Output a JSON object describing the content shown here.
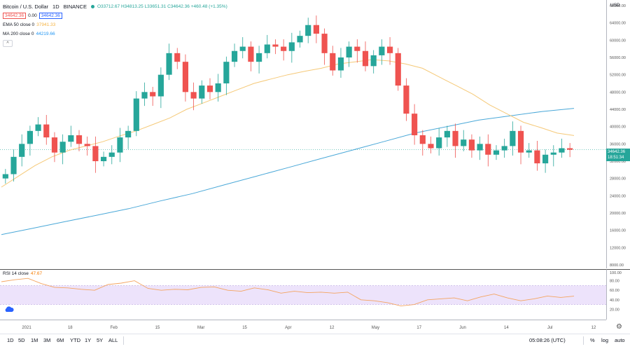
{
  "legend": {
    "symbol": "Bitcoin / U.S. Dollar",
    "interval": "1D",
    "exchange": "BINANCE",
    "ohlc": "O33712.67 H34813.25 L33651.31 C34642.36 +460.48 (+1.35%)",
    "bid": "34642.36",
    "spread": "0.00",
    "ask": "34642.36",
    "ema_label": "EMA 50 close 0",
    "ema_value": "37941.33",
    "ma_label": "MA 200 close 0",
    "ma_value": "44219.66",
    "collapse_glyph": "^"
  },
  "rsi": {
    "label": "RSI 14 close",
    "value": "47.67"
  },
  "price_axis": {
    "currency": "USD",
    "labels": [
      "68000.00",
      "64000.00",
      "60000.00",
      "56000.00",
      "52000.00",
      "48000.00",
      "44000.00",
      "40000.00",
      "36000.00",
      "32000.00",
      "28000.00",
      "24000.00",
      "20000.00",
      "16000.00",
      "12000.00",
      "8000.00"
    ],
    "current_price": "34642.36",
    "countdown": "18:51:34"
  },
  "rsi_axis": {
    "labels": [
      "100.00",
      "80.00",
      "60.00",
      "40.00",
      "20.00"
    ]
  },
  "time_axis": {
    "labels": [
      "2021",
      "18",
      "Feb",
      "15",
      "Mar",
      "15",
      "Apr",
      "12",
      "May",
      "17",
      "Jun",
      "14",
      "Jul",
      "12"
    ]
  },
  "bottom_bar": {
    "ranges": [
      "1D",
      "5D",
      "1M",
      "3M",
      "6M",
      "YTD",
      "1Y",
      "5Y",
      "ALL"
    ],
    "clock": "05:08:26 (UTC)",
    "percent": "%",
    "log": "log",
    "auto": "auto"
  },
  "colors": {
    "up": "#26a69a",
    "down": "#ef5350",
    "ema": "#f5c978",
    "ma": "#4aa8d8",
    "rsi": "#f4a460",
    "rsi_band": "#ede3fb"
  },
  "icons": {
    "settings": "gear-icon",
    "cloud": "cloud-icon"
  },
  "chart_data": {
    "type": "candlestick",
    "symbol": "Bitcoin / U.S. Dollar",
    "ylim": [
      8000,
      68000
    ],
    "ohlc_last": {
      "open": 33712.67,
      "high": 34813.25,
      "low": 33651.31,
      "close": 34642.36
    },
    "close_series": [
      29000,
      33000,
      36000,
      39000,
      40500,
      37500,
      34000,
      36500,
      38000,
      36000,
      35500,
      32000,
      33000,
      34000,
      37500,
      39000,
      46500,
      48000,
      47000,
      52000,
      57000,
      55000,
      48000,
      46500,
      49500,
      48000,
      50000,
      55000,
      57500,
      58500,
      55000,
      57000,
      59000,
      58500,
      57500,
      59500,
      61000,
      63500,
      61500,
      57000,
      53000,
      56000,
      58500,
      57500,
      54000,
      56500,
      58500,
      57000,
      49500,
      43000,
      38000,
      36000,
      35000,
      37500,
      39000,
      35500,
      37000,
      34500,
      36000,
      33500,
      34500,
      35500,
      39000,
      34000,
      34500,
      31500,
      33500,
      34000,
      35000,
      34642
    ],
    "ema50": [
      26000,
      28500,
      31000,
      33000,
      34500,
      35500,
      36500,
      37800,
      39000,
      40500,
      42000,
      44000,
      45500,
      47000,
      48500,
      50000,
      51000,
      52000,
      52800,
      53500,
      54500,
      55000,
      55500,
      55200,
      54500,
      53500,
      51500,
      49500,
      47500,
      45000,
      43000,
      41000,
      39800,
      38500,
      37941
    ],
    "ma200": [
      15000,
      16500,
      18000,
      19500,
      21000,
      22800,
      24500,
      26500,
      28500,
      30500,
      32500,
      34500,
      36500,
      38500,
      40000,
      41500,
      42500,
      43500,
      44219
    ],
    "rsi": [
      78,
      82,
      85,
      74,
      66,
      65,
      62,
      60,
      72,
      75,
      80,
      64,
      60,
      62,
      61,
      66,
      67,
      60,
      58,
      65,
      61,
      54,
      58,
      55,
      56,
      54,
      56,
      40,
      38,
      34,
      27,
      30,
      40,
      42,
      44,
      38,
      46,
      52,
      44,
      38,
      42,
      48,
      45,
      47.67
    ],
    "rsi_ylim": [
      0,
      100
    ],
    "rsi_band": [
      30,
      70
    ]
  }
}
